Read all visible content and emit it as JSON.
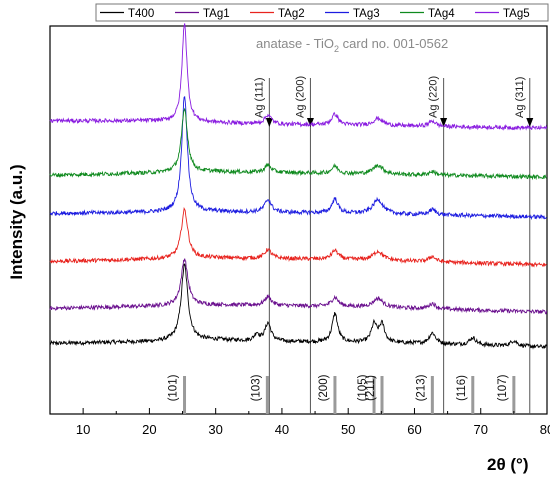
{
  "chart_data": {
    "type": "line",
    "title": "",
    "xlabel": "2θ (°)",
    "ylabel": "Intensity (a.u.)",
    "xlim": [
      5,
      80
    ],
    "xticks": [
      10,
      20,
      30,
      40,
      50,
      60,
      70,
      80
    ],
    "xtick_labels": [
      "10",
      "20",
      "30",
      "40",
      "50",
      "60",
      "70",
      "80"
    ],
    "y_ticks_shown": false,
    "legend": {
      "placement": "top",
      "entries": [
        "T400",
        "TAg1",
        "TAg2",
        "TAg3",
        "TAg4",
        "TAg5"
      ]
    },
    "reference_card": {
      "text_main": "anatase - TiO",
      "text_sub": "2",
      "text_rest": " card no. 001-0562"
    },
    "reference_lines": [
      {
        "x": 25.3,
        "label": "(101)"
      },
      {
        "x": 37.8,
        "label": "(103)"
      },
      {
        "x": 48.0,
        "label": "(200)"
      },
      {
        "x": 53.9,
        "label": "(105)"
      },
      {
        "x": 55.1,
        "label": "(211)"
      },
      {
        "x": 62.7,
        "label": "(213)"
      },
      {
        "x": 68.8,
        "label": "(116)"
      },
      {
        "x": 75.0,
        "label": "(107)"
      }
    ],
    "ag_markers": [
      {
        "x": 38.1,
        "label": "Ag (111)"
      },
      {
        "x": 44.3,
        "label": "Ag (200)"
      },
      {
        "x": 64.4,
        "label": "Ag (220)"
      },
      {
        "x": 77.4,
        "label": "Ag (311)"
      }
    ],
    "series": [
      {
        "name": "T400",
        "color": "#000000",
        "offset": 0,
        "peaks": [
          [
            25.3,
            0.42,
            0.6
          ],
          [
            37.9,
            0.1,
            0.55
          ],
          [
            36.2,
            0.04,
            0.4
          ],
          [
            48.0,
            0.16,
            0.5
          ],
          [
            53.9,
            0.1,
            0.5
          ],
          [
            55.1,
            0.1,
            0.5
          ],
          [
            62.7,
            0.06,
            0.6
          ],
          [
            68.8,
            0.04,
            0.6
          ],
          [
            75.0,
            0.03,
            0.6
          ]
        ],
        "baseline": [
          [
            5,
            0.02
          ],
          [
            20,
            0.03
          ],
          [
            30,
            0.04
          ],
          [
            40,
            0.03
          ],
          [
            60,
            0.02
          ],
          [
            80,
            0.0
          ]
        ]
      },
      {
        "name": "TAg1",
        "color": "#6a0f8e",
        "offset": 1,
        "peaks": [
          [
            25.3,
            0.26,
            0.6
          ],
          [
            37.9,
            0.05,
            0.6
          ],
          [
            48.0,
            0.05,
            0.6
          ],
          [
            54.5,
            0.05,
            0.9
          ],
          [
            62.7,
            0.03,
            0.6
          ]
        ],
        "baseline": [
          [
            5,
            0.02
          ],
          [
            30,
            0.04
          ],
          [
            50,
            0.03
          ],
          [
            80,
            0.0
          ]
        ]
      },
      {
        "name": "TAg2",
        "color": "#e8231e",
        "offset": 2,
        "peaks": [
          [
            25.3,
            0.27,
            0.6
          ],
          [
            37.9,
            0.05,
            0.6
          ],
          [
            48.0,
            0.05,
            0.6
          ],
          [
            54.5,
            0.05,
            0.9
          ],
          [
            62.7,
            0.03,
            0.6
          ]
        ],
        "baseline": [
          [
            5,
            0.02
          ],
          [
            30,
            0.04
          ],
          [
            50,
            0.03
          ],
          [
            80,
            0.0
          ]
        ]
      },
      {
        "name": "TAg3",
        "color": "#1c1ce0",
        "offset": 3,
        "peaks": [
          [
            25.3,
            0.65,
            0.5
          ],
          [
            37.9,
            0.07,
            0.6
          ],
          [
            48.0,
            0.08,
            0.55
          ],
          [
            54.5,
            0.08,
            0.9
          ],
          [
            62.7,
            0.03,
            0.6
          ]
        ],
        "baseline": [
          [
            5,
            0.02
          ],
          [
            30,
            0.03
          ],
          [
            50,
            0.02
          ],
          [
            80,
            0.0
          ]
        ]
      },
      {
        "name": "TAg4",
        "color": "#0f8a1e",
        "offset": 4,
        "peaks": [
          [
            25.3,
            0.35,
            0.55
          ],
          [
            37.9,
            0.04,
            0.6
          ],
          [
            48.0,
            0.04,
            0.6
          ],
          [
            54.5,
            0.05,
            0.9
          ],
          [
            62.7,
            0.02,
            0.6
          ]
        ],
        "baseline": [
          [
            5,
            0.01
          ],
          [
            30,
            0.03
          ],
          [
            80,
            0.0
          ]
        ]
      },
      {
        "name": "TAg5",
        "color": "#8a1de0",
        "offset": 5,
        "peaks": [
          [
            25.3,
            0.55,
            0.45
          ],
          [
            37.9,
            0.05,
            0.6
          ],
          [
            48.0,
            0.06,
            0.6
          ],
          [
            54.5,
            0.04,
            0.9
          ],
          [
            62.7,
            0.03,
            0.6
          ]
        ],
        "baseline": [
          [
            5,
            0.04
          ],
          [
            20,
            0.04
          ],
          [
            40,
            0.02
          ],
          [
            80,
            0.0
          ]
        ]
      }
    ]
  }
}
